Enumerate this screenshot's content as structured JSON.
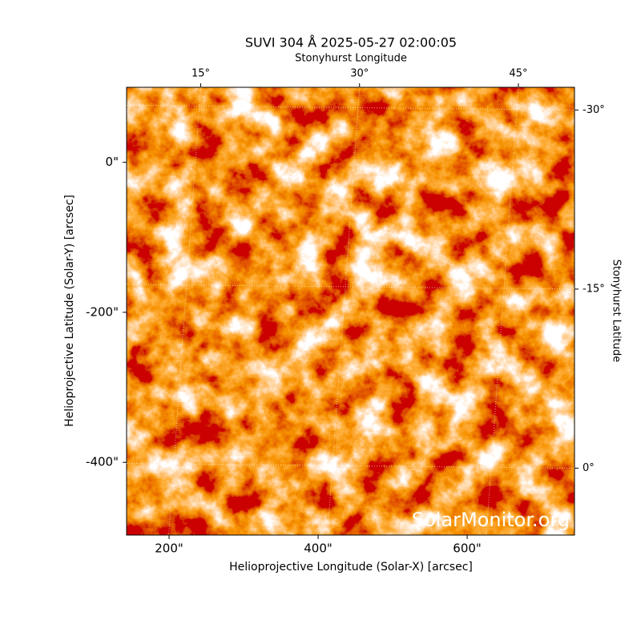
{
  "chart_data": {
    "type": "image",
    "title": "SUVI 304 Å 2025-05-27 02:00:05",
    "xlabel": "Helioprojective Longitude (Solar-X) [arcsec]",
    "ylabel": "Helioprojective Latitude (Solar-Y) [arcsec]",
    "x2label": "Stonyhurst Longitude",
    "y2label": "Stonyhurst Latitude",
    "watermark": "SolarMonitor.org",
    "xlim": [
      143,
      744
    ],
    "ylim": [
      -497,
      100
    ],
    "xticks": [
      {
        "value": 200,
        "label": "200\""
      },
      {
        "value": 400,
        "label": "400\""
      },
      {
        "value": 600,
        "label": "600\""
      }
    ],
    "yticks": [
      {
        "value": 0,
        "label": "0\""
      },
      {
        "value": -200,
        "label": "-200\""
      },
      {
        "value": -400,
        "label": "-400\""
      }
    ],
    "x2lim": [
      8,
      50.3
    ],
    "x2ticks": [
      {
        "value": 15,
        "label": "15°"
      },
      {
        "value": 30,
        "label": "30°"
      },
      {
        "value": 45,
        "label": "45°"
      }
    ],
    "y2lim": [
      5.6,
      -31.9
    ],
    "y2ticks": [
      {
        "value": 0,
        "label": "0°"
      },
      {
        "value": -15,
        "label": "-15°"
      },
      {
        "value": -30,
        "label": "-30°"
      }
    ],
    "grid": true
  }
}
